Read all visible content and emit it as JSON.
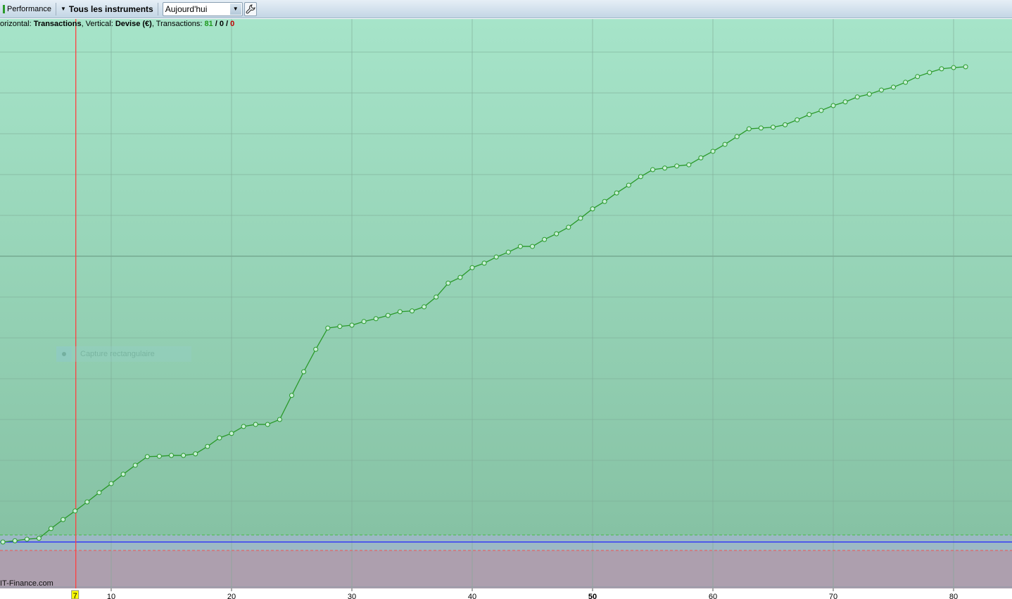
{
  "toolbar": {
    "performance_label": "Performance",
    "instruments_label": "Tous les instruments",
    "period_value": "Aujourd'hui",
    "settings_icon": "wrench-icon"
  },
  "info": {
    "horizontal_label": "orizontal: ",
    "horizontal_value": "Transactions",
    "vertical_label": ", Vertical: ",
    "vertical_value": "Devise (€)",
    "transactions_label": ", Transactions: ",
    "win": "81",
    "sep1": " / ",
    "neutral": "0",
    "sep2": " / ",
    "loss": "0"
  },
  "brand": "IT-Finance.com",
  "ghost_tooltip": "Capture rectangulaire",
  "cursor_label": "7",
  "colors": {
    "line": "#2a9a2a",
    "cursor": "#ff4040",
    "baseline": "#2020ff",
    "bg_top": "#a6e4c9",
    "bg_bottom": "#86c2a4",
    "loss_zone": "#ad9fae"
  },
  "chart_data": {
    "type": "line",
    "x_ticks": [
      10,
      20,
      30,
      40,
      50,
      60,
      70,
      80
    ],
    "xlim": [
      0,
      84
    ],
    "grid": true,
    "cursor_x": 7,
    "x": [
      1,
      2,
      3,
      4,
      5,
      6,
      7,
      8,
      9,
      10,
      11,
      12,
      13,
      14,
      15,
      16,
      17,
      18,
      19,
      20,
      21,
      22,
      23,
      24,
      25,
      26,
      27,
      28,
      29,
      30,
      31,
      32,
      33,
      34,
      35,
      36,
      37,
      38,
      39,
      40,
      41,
      42,
      43,
      44,
      45,
      46,
      47,
      48,
      49,
      50,
      51,
      52,
      53,
      54,
      55,
      56,
      57,
      58,
      59,
      60,
      61,
      62,
      63,
      64,
      65,
      66,
      67,
      68,
      69,
      70,
      71,
      72,
      73,
      74,
      75,
      76,
      77,
      78,
      79,
      80,
      81
    ],
    "y": [
      0,
      0.03,
      0.07,
      0.09,
      0.33,
      0.55,
      0.76,
      0.98,
      1.21,
      1.43,
      1.66,
      1.88,
      2.09,
      2.1,
      2.12,
      2.12,
      2.16,
      2.34,
      2.55,
      2.66,
      2.83,
      2.88,
      2.88,
      3.0,
      3.59,
      4.17,
      4.72,
      5.24,
      5.28,
      5.31,
      5.4,
      5.47,
      5.55,
      5.64,
      5.66,
      5.76,
      6.0,
      6.34,
      6.48,
      6.72,
      6.83,
      6.98,
      7.1,
      7.24,
      7.24,
      7.41,
      7.55,
      7.71,
      7.93,
      8.16,
      8.34,
      8.55,
      8.74,
      8.95,
      9.12,
      9.16,
      9.21,
      9.24,
      9.41,
      9.57,
      9.74,
      9.93,
      10.12,
      10.14,
      10.16,
      10.22,
      10.34,
      10.47,
      10.57,
      10.69,
      10.78,
      10.9,
      10.97,
      11.07,
      11.14,
      11.26,
      11.4,
      11.5,
      11.59,
      11.62,
      11.64
    ]
  }
}
